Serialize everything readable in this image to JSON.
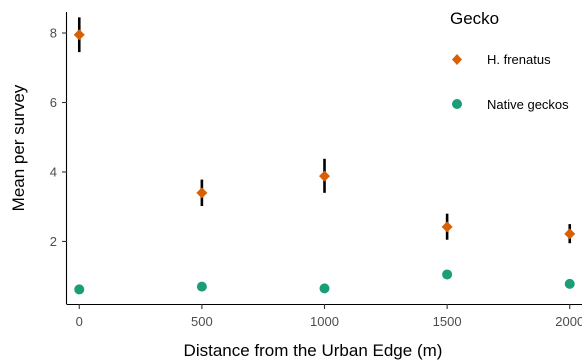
{
  "chart_data": {
    "type": "scatter",
    "x": [
      0,
      500,
      1000,
      1500,
      2000
    ],
    "xlabel": "Distance from the Urban Edge (m)",
    "ylabel": "Mean per survey",
    "xlim": [
      -50,
      2050
    ],
    "ylim": [
      0.2,
      8.95
    ],
    "x_ticks": [
      0,
      500,
      1000,
      1500,
      2000
    ],
    "x_tick_labels": [
      "0",
      "500",
      "1000",
      "1500",
      "2000"
    ],
    "y_ticks": [
      2,
      4,
      6,
      8
    ],
    "y_tick_labels": [
      "2",
      "4",
      "6",
      "8"
    ],
    "grid": false,
    "legend": {
      "title": "Gecko",
      "placement": "right"
    },
    "series": [
      {
        "name": "H. frenatus",
        "marker": "diamond",
        "color": "#d95f02",
        "values": [
          7.95,
          3.4,
          3.88,
          2.42,
          2.22
        ],
        "error_low": [
          7.45,
          3.02,
          3.4,
          2.05,
          1.95
        ],
        "error_high": [
          8.45,
          3.78,
          4.38,
          2.8,
          2.5
        ]
      },
      {
        "name": "Native geckos",
        "marker": "circle",
        "color": "#1b9e77",
        "values": [
          0.62,
          0.7,
          0.65,
          1.05,
          0.78
        ],
        "error_low": [
          0.58,
          0.66,
          0.61,
          0.97,
          0.74
        ],
        "error_high": [
          0.66,
          0.74,
          0.69,
          1.13,
          0.82
        ]
      }
    ]
  }
}
